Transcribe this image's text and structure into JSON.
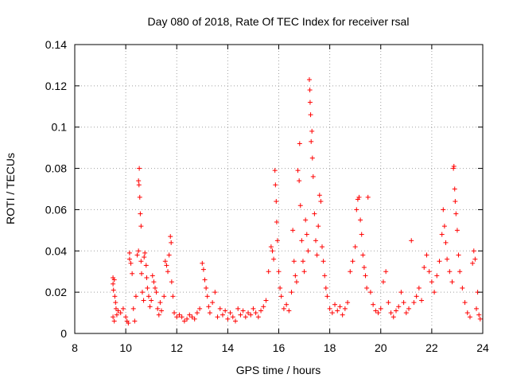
{
  "chart_data": {
    "type": "scatter",
    "title": "Day 080 of 2018, Rate Of TEC Index for receiver rsal",
    "xlabel": "GPS time / hours",
    "ylabel": "ROTI / TECUs",
    "xlim": [
      8,
      24
    ],
    "ylim": [
      0,
      0.14
    ],
    "xticks": [
      8,
      10,
      12,
      14,
      16,
      18,
      20,
      22,
      24
    ],
    "xtick_labels": [
      "8",
      "10",
      "12",
      "14",
      "16",
      "18",
      "20",
      "22",
      "24"
    ],
    "yticks": [
      0,
      0.02,
      0.04,
      0.06,
      0.08,
      0.1,
      0.12,
      0.14
    ],
    "ytick_labels": [
      "0",
      "0.02",
      "0.04",
      "0.06",
      "0.08",
      "0.1",
      "0.12",
      "0.14"
    ],
    "grid": true,
    "marker": "+",
    "color": "#ff0000",
    "series": [
      {
        "name": "ROTI",
        "points": [
          [
            9.5,
            0.027
          ],
          [
            9.5,
            0.024
          ],
          [
            9.52,
            0.021
          ],
          [
            9.55,
            0.026
          ],
          [
            9.57,
            0.018
          ],
          [
            9.6,
            0.015
          ],
          [
            9.62,
            0.012
          ],
          [
            9.5,
            0.008
          ],
          [
            9.55,
            0.006
          ],
          [
            9.65,
            0.009
          ],
          [
            9.7,
            0.011
          ],
          [
            9.8,
            0.01
          ],
          [
            9.9,
            0.012
          ],
          [
            10.0,
            0.008
          ],
          [
            10.05,
            0.006
          ],
          [
            10.1,
            0.005
          ],
          [
            10.15,
            0.036
          ],
          [
            10.15,
            0.039
          ],
          [
            10.2,
            0.034
          ],
          [
            10.25,
            0.029
          ],
          [
            10.3,
            0.012
          ],
          [
            10.35,
            0.006
          ],
          [
            10.4,
            0.018
          ],
          [
            10.45,
            0.038
          ],
          [
            10.5,
            0.04
          ],
          [
            10.5,
            0.074
          ],
          [
            10.52,
            0.072
          ],
          [
            10.53,
            0.08
          ],
          [
            10.55,
            0.066
          ],
          [
            10.57,
            0.058
          ],
          [
            10.6,
            0.052
          ],
          [
            10.6,
            0.035
          ],
          [
            10.62,
            0.029
          ],
          [
            10.65,
            0.02
          ],
          [
            10.7,
            0.016
          ],
          [
            10.72,
            0.037
          ],
          [
            10.75,
            0.039
          ],
          [
            10.8,
            0.033
          ],
          [
            10.82,
            0.027
          ],
          [
            10.85,
            0.022
          ],
          [
            10.9,
            0.018
          ],
          [
            10.95,
            0.013
          ],
          [
            11.0,
            0.016
          ],
          [
            11.05,
            0.028
          ],
          [
            11.1,
            0.025
          ],
          [
            11.15,
            0.022
          ],
          [
            11.2,
            0.02
          ],
          [
            11.25,
            0.012
          ],
          [
            11.3,
            0.009
          ],
          [
            11.35,
            0.015
          ],
          [
            11.4,
            0.011
          ],
          [
            11.5,
            0.018
          ],
          [
            11.55,
            0.035
          ],
          [
            11.6,
            0.033
          ],
          [
            11.65,
            0.03
          ],
          [
            11.7,
            0.038
          ],
          [
            11.75,
            0.047
          ],
          [
            11.78,
            0.044
          ],
          [
            11.8,
            0.025
          ],
          [
            11.85,
            0.018
          ],
          [
            11.9,
            0.01
          ],
          [
            12.0,
            0.008
          ],
          [
            12.1,
            0.009
          ],
          [
            12.2,
            0.008
          ],
          [
            12.3,
            0.006
          ],
          [
            12.4,
            0.007
          ],
          [
            12.5,
            0.009
          ],
          [
            12.6,
            0.008
          ],
          [
            12.7,
            0.007
          ],
          [
            12.8,
            0.01
          ],
          [
            12.9,
            0.012
          ],
          [
            13.0,
            0.034
          ],
          [
            13.05,
            0.031
          ],
          [
            13.1,
            0.026
          ],
          [
            13.15,
            0.022
          ],
          [
            13.2,
            0.018
          ],
          [
            13.25,
            0.013
          ],
          [
            13.3,
            0.01
          ],
          [
            13.4,
            0.015
          ],
          [
            13.5,
            0.02
          ],
          [
            13.6,
            0.008
          ],
          [
            13.7,
            0.012
          ],
          [
            13.8,
            0.009
          ],
          [
            13.9,
            0.011
          ],
          [
            14.0,
            0.007
          ],
          [
            14.1,
            0.01
          ],
          [
            14.2,
            0.008
          ],
          [
            14.3,
            0.006
          ],
          [
            14.4,
            0.012
          ],
          [
            14.5,
            0.009
          ],
          [
            14.6,
            0.011
          ],
          [
            14.7,
            0.008
          ],
          [
            14.8,
            0.01
          ],
          [
            14.9,
            0.009
          ],
          [
            15.0,
            0.012
          ],
          [
            15.1,
            0.01
          ],
          [
            15.2,
            0.008
          ],
          [
            15.3,
            0.011
          ],
          [
            15.4,
            0.013
          ],
          [
            15.5,
            0.016
          ],
          [
            15.6,
            0.03
          ],
          [
            15.7,
            0.042
          ],
          [
            15.75,
            0.04
          ],
          [
            15.8,
            0.036
          ],
          [
            15.85,
            0.079
          ],
          [
            15.87,
            0.072
          ],
          [
            15.9,
            0.064
          ],
          [
            15.92,
            0.054
          ],
          [
            15.95,
            0.045
          ],
          [
            16.0,
            0.03
          ],
          [
            16.05,
            0.022
          ],
          [
            16.1,
            0.018
          ],
          [
            16.2,
            0.012
          ],
          [
            16.3,
            0.014
          ],
          [
            16.4,
            0.011
          ],
          [
            16.5,
            0.02
          ],
          [
            16.55,
            0.05
          ],
          [
            16.6,
            0.035
          ],
          [
            16.65,
            0.028
          ],
          [
            16.7,
            0.025
          ],
          [
            16.75,
            0.079
          ],
          [
            16.8,
            0.074
          ],
          [
            16.82,
            0.092
          ],
          [
            16.85,
            0.062
          ],
          [
            16.9,
            0.045
          ],
          [
            16.95,
            0.035
          ],
          [
            17.0,
            0.03
          ],
          [
            17.05,
            0.055
          ],
          [
            17.1,
            0.048
          ],
          [
            17.15,
            0.04
          ],
          [
            17.2,
            0.123
          ],
          [
            17.22,
            0.118
          ],
          [
            17.23,
            0.112
          ],
          [
            17.25,
            0.106
          ],
          [
            17.27,
            0.093
          ],
          [
            17.3,
            0.098
          ],
          [
            17.32,
            0.085
          ],
          [
            17.35,
            0.076
          ],
          [
            17.4,
            0.058
          ],
          [
            17.45,
            0.045
          ],
          [
            17.5,
            0.038
          ],
          [
            17.55,
            0.052
          ],
          [
            17.6,
            0.067
          ],
          [
            17.65,
            0.064
          ],
          [
            17.7,
            0.042
          ],
          [
            17.75,
            0.035
          ],
          [
            17.8,
            0.028
          ],
          [
            17.85,
            0.022
          ],
          [
            17.9,
            0.018
          ],
          [
            18.0,
            0.012
          ],
          [
            18.1,
            0.01
          ],
          [
            18.2,
            0.014
          ],
          [
            18.3,
            0.011
          ],
          [
            18.4,
            0.013
          ],
          [
            18.5,
            0.009
          ],
          [
            18.6,
            0.012
          ],
          [
            18.7,
            0.015
          ],
          [
            18.8,
            0.03
          ],
          [
            18.9,
            0.035
          ],
          [
            19.0,
            0.042
          ],
          [
            19.05,
            0.06
          ],
          [
            19.1,
            0.065
          ],
          [
            19.15,
            0.066
          ],
          [
            19.2,
            0.055
          ],
          [
            19.25,
            0.048
          ],
          [
            19.3,
            0.038
          ],
          [
            19.35,
            0.032
          ],
          [
            19.4,
            0.028
          ],
          [
            19.45,
            0.022
          ],
          [
            19.5,
            0.066
          ],
          [
            19.6,
            0.02
          ],
          [
            19.7,
            0.014
          ],
          [
            19.8,
            0.011
          ],
          [
            19.9,
            0.01
          ],
          [
            20.0,
            0.012
          ],
          [
            20.1,
            0.025
          ],
          [
            20.2,
            0.03
          ],
          [
            20.3,
            0.015
          ],
          [
            20.4,
            0.01
          ],
          [
            20.5,
            0.008
          ],
          [
            20.6,
            0.011
          ],
          [
            20.7,
            0.013
          ],
          [
            20.8,
            0.02
          ],
          [
            20.9,
            0.015
          ],
          [
            21.0,
            0.01
          ],
          [
            21.1,
            0.012
          ],
          [
            21.2,
            0.045
          ],
          [
            21.3,
            0.015
          ],
          [
            21.4,
            0.018
          ],
          [
            21.5,
            0.022
          ],
          [
            21.6,
            0.016
          ],
          [
            21.7,
            0.032
          ],
          [
            21.8,
            0.038
          ],
          [
            21.9,
            0.03
          ],
          [
            22.0,
            0.025
          ],
          [
            22.1,
            0.02
          ],
          [
            22.2,
            0.028
          ],
          [
            22.3,
            0.035
          ],
          [
            22.4,
            0.048
          ],
          [
            22.45,
            0.06
          ],
          [
            22.5,
            0.052
          ],
          [
            22.55,
            0.044
          ],
          [
            22.6,
            0.036
          ],
          [
            22.7,
            0.03
          ],
          [
            22.8,
            0.025
          ],
          [
            22.85,
            0.08
          ],
          [
            22.87,
            0.081
          ],
          [
            22.9,
            0.07
          ],
          [
            22.92,
            0.064
          ],
          [
            22.95,
            0.058
          ],
          [
            23.0,
            0.05
          ],
          [
            23.05,
            0.038
          ],
          [
            23.1,
            0.03
          ],
          [
            23.2,
            0.022
          ],
          [
            23.3,
            0.015
          ],
          [
            23.4,
            0.01
          ],
          [
            23.5,
            0.008
          ],
          [
            23.6,
            0.034
          ],
          [
            23.65,
            0.04
          ],
          [
            23.7,
            0.036
          ],
          [
            23.75,
            0.012
          ],
          [
            23.8,
            0.02
          ],
          [
            23.85,
            0.009
          ],
          [
            23.9,
            0.007
          ]
        ]
      }
    ]
  }
}
